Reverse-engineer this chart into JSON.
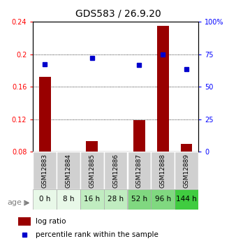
{
  "title": "GDS583 / 26.9.20",
  "samples": [
    "GSM12883",
    "GSM12884",
    "GSM12885",
    "GSM12886",
    "GSM12887",
    "GSM12888",
    "GSM12889"
  ],
  "ages": [
    "0 h",
    "8 h",
    "16 h",
    "28 h",
    "52 h",
    "96 h",
    "144 h"
  ],
  "log_ratio": [
    0.172,
    0.0,
    0.093,
    0.0,
    0.119,
    0.235,
    0.09
  ],
  "percentile_rank": [
    67.5,
    0.0,
    72.0,
    0.0,
    67.0,
    75.0,
    63.5
  ],
  "bar_color": "#990000",
  "dot_color": "#0000cc",
  "ylim_left": [
    0.08,
    0.24
  ],
  "ylim_right": [
    0,
    100
  ],
  "yticks_left": [
    0.08,
    0.12,
    0.16,
    0.2,
    0.24
  ],
  "yticks_right": [
    0,
    25,
    50,
    75,
    100
  ],
  "ytick_labels_right": [
    "0",
    "25",
    "50",
    "75",
    "100%"
  ],
  "age_bg_colors": [
    "#e8f8e8",
    "#e8f8e8",
    "#c0ecc0",
    "#c0ecc0",
    "#80d880",
    "#80d880",
    "#40cc40"
  ],
  "sample_bg_color": "#d0d0d0",
  "bar_width": 0.5,
  "legend_log_ratio": "log ratio",
  "legend_percentile": "percentile rank within the sample",
  "age_label": "age"
}
